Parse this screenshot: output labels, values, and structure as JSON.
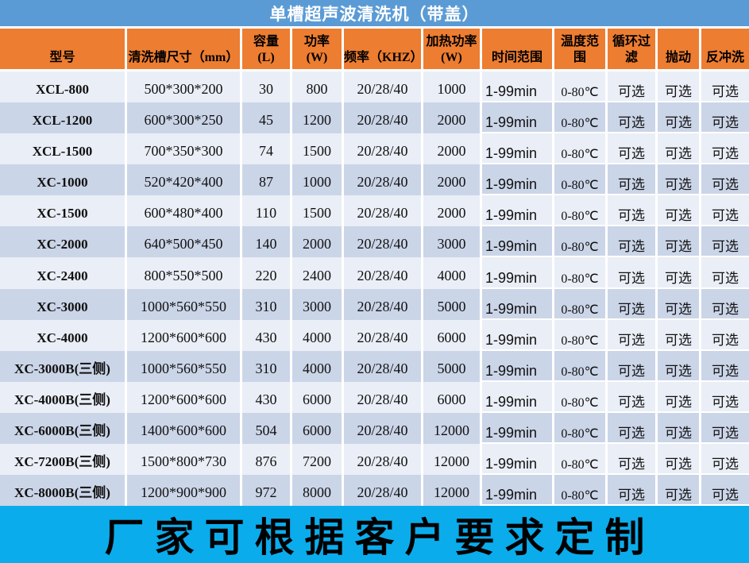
{
  "title": "单槽超声波清洗机（带盖）",
  "banner_text": "厂家可根据客户要求定制",
  "colors": {
    "title_bar_bg": "#5B9BD5",
    "title_text": "#FFFFFF",
    "header_bg": "#ED7D31",
    "row_light": "#EAEEF6",
    "row_alt": "#CBD5E8",
    "banner_bg": "#0BACEC",
    "banner_text": "#000000",
    "grid_line": "#FFFFFF"
  },
  "chart_data": {
    "type": "table",
    "title": "单槽超声波清洗机（带盖）",
    "columns": [
      {
        "key": "model",
        "label": "型号"
      },
      {
        "key": "tank_size",
        "label": "清洗槽尺寸（mm）"
      },
      {
        "key": "capacity",
        "label": "容量\n(L)"
      },
      {
        "key": "power",
        "label": "功率\n(W)"
      },
      {
        "key": "frequency",
        "label": "频率（KHZ）"
      },
      {
        "key": "heating_power",
        "label": "加热功率\n(W)"
      },
      {
        "key": "time_range",
        "label": "时间范围"
      },
      {
        "key": "temp_range",
        "label": "温度范\n围"
      },
      {
        "key": "circulation_filter",
        "label": "循环过\n滤"
      },
      {
        "key": "agitation",
        "label": "抛动"
      },
      {
        "key": "backwash",
        "label": "反冲洗"
      }
    ],
    "rows": [
      {
        "model": "XCL-800",
        "tank_size": "500*300*200",
        "capacity": "30",
        "power": "800",
        "frequency": "20/28/40",
        "heating_power": "1000",
        "time_range": "1-99min",
        "temp_range": "0-80℃",
        "circulation_filter": "可选",
        "agitation": "可选",
        "backwash": "可选"
      },
      {
        "model": "XCL-1200",
        "tank_size": "600*300*250",
        "capacity": "45",
        "power": "1200",
        "frequency": "20/28/40",
        "heating_power": "2000",
        "time_range": "1-99min",
        "temp_range": "0-80℃",
        "circulation_filter": "可选",
        "agitation": "可选",
        "backwash": "可选"
      },
      {
        "model": "XCL-1500",
        "tank_size": "700*350*300",
        "capacity": "74",
        "power": "1500",
        "frequency": "20/28/40",
        "heating_power": "2000",
        "time_range": "1-99min",
        "temp_range": "0-80℃",
        "circulation_filter": "可选",
        "agitation": "可选",
        "backwash": "可选"
      },
      {
        "model": "XC-1000",
        "tank_size": "520*420*400",
        "capacity": "87",
        "power": "1000",
        "frequency": "20/28/40",
        "heating_power": "2000",
        "time_range": "1-99min",
        "temp_range": "0-80℃",
        "circulation_filter": "可选",
        "agitation": "可选",
        "backwash": "可选"
      },
      {
        "model": "XC-1500",
        "tank_size": "600*480*400",
        "capacity": "110",
        "power": "1500",
        "frequency": "20/28/40",
        "heating_power": "2000",
        "time_range": "1-99min",
        "temp_range": "0-80℃",
        "circulation_filter": "可选",
        "agitation": "可选",
        "backwash": "可选"
      },
      {
        "model": "XC-2000",
        "tank_size": "640*500*450",
        "capacity": "140",
        "power": "2000",
        "frequency": "20/28/40",
        "heating_power": "3000",
        "time_range": "1-99min",
        "temp_range": "0-80℃",
        "circulation_filter": "可选",
        "agitation": "可选",
        "backwash": "可选"
      },
      {
        "model": "XC-2400",
        "tank_size": "800*550*500",
        "capacity": "220",
        "power": "2400",
        "frequency": "20/28/40",
        "heating_power": "4000",
        "time_range": "1-99min",
        "temp_range": "0-80℃",
        "circulation_filter": "可选",
        "agitation": "可选",
        "backwash": "可选"
      },
      {
        "model": "XC-3000",
        "tank_size": "1000*560*550",
        "capacity": "310",
        "power": "3000",
        "frequency": "20/28/40",
        "heating_power": "5000",
        "time_range": "1-99min",
        "temp_range": "0-80℃",
        "circulation_filter": "可选",
        "agitation": "可选",
        "backwash": "可选"
      },
      {
        "model": "XC-4000",
        "tank_size": "1200*600*600",
        "capacity": "430",
        "power": "4000",
        "frequency": "20/28/40",
        "heating_power": "6000",
        "time_range": "1-99min",
        "temp_range": "0-80℃",
        "circulation_filter": "可选",
        "agitation": "可选",
        "backwash": "可选"
      },
      {
        "model": "XC-3000B(三侧)",
        "tank_size": "1000*560*550",
        "capacity": "310",
        "power": "4000",
        "frequency": "20/28/40",
        "heating_power": "5000",
        "time_range": "1-99min",
        "temp_range": "0-80℃",
        "circulation_filter": "可选",
        "agitation": "可选",
        "backwash": "可选"
      },
      {
        "model": "XC-4000B(三侧)",
        "tank_size": "1200*600*600",
        "capacity": "430",
        "power": "6000",
        "frequency": "20/28/40",
        "heating_power": "6000",
        "time_range": "1-99min",
        "temp_range": "0-80℃",
        "circulation_filter": "可选",
        "agitation": "可选",
        "backwash": "可选"
      },
      {
        "model": "XC-6000B(三侧)",
        "tank_size": "1400*600*600",
        "capacity": "504",
        "power": "6000",
        "frequency": "20/28/40",
        "heating_power": "12000",
        "time_range": "1-99min",
        "temp_range": "0-80℃",
        "circulation_filter": "可选",
        "agitation": "可选",
        "backwash": "可选"
      },
      {
        "model": "XC-7200B(三侧)",
        "tank_size": "1500*800*730",
        "capacity": "876",
        "power": "7200",
        "frequency": "20/28/40",
        "heating_power": "12000",
        "time_range": "1-99min",
        "temp_range": "0-80℃",
        "circulation_filter": "可选",
        "agitation": "可选",
        "backwash": "可选"
      },
      {
        "model": "XC-8000B(三侧)",
        "tank_size": "1200*900*900",
        "capacity": "972",
        "power": "8000",
        "frequency": "20/28/40",
        "heating_power": "12000",
        "time_range": "1-99min",
        "temp_range": "0-80℃",
        "circulation_filter": "可选",
        "agitation": "可选",
        "backwash": "可选"
      }
    ]
  }
}
